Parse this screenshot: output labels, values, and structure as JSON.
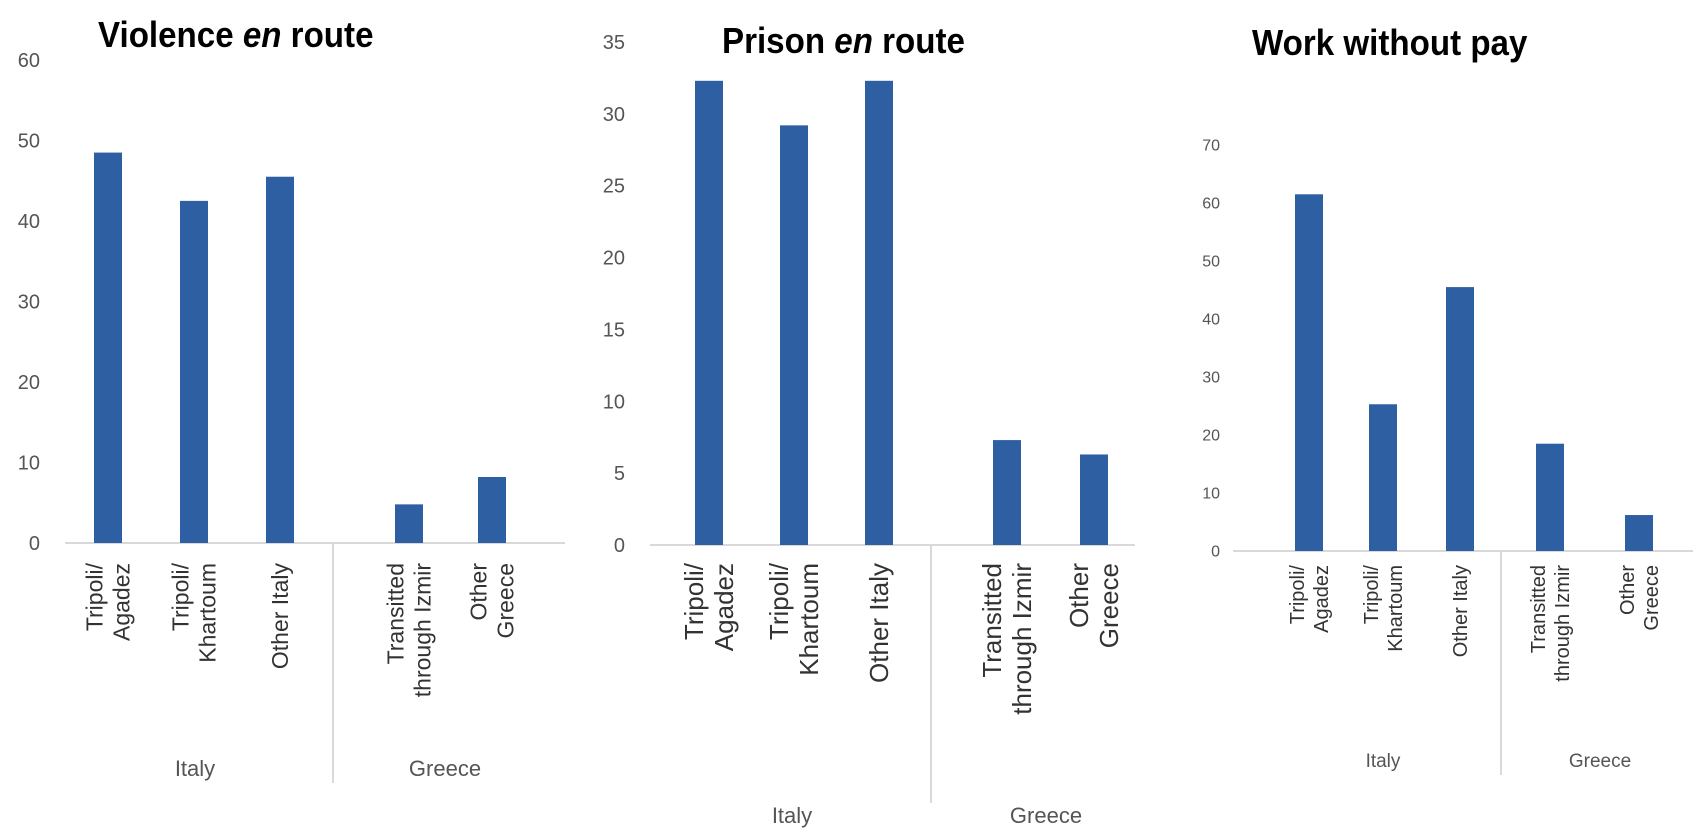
{
  "chart_data": [
    {
      "type": "bar",
      "title_parts": [
        "Violence ",
        "en",
        " route"
      ],
      "categories": [
        {
          "label": [
            "Tripoli/",
            "Agadez"
          ],
          "group": "Italy"
        },
        {
          "label": [
            "Tripoli/",
            "Khartoum"
          ],
          "group": "Italy"
        },
        {
          "label": [
            "Other Italy"
          ],
          "group": "Italy"
        },
        {
          "label": [
            "Transitted",
            "through Izmir"
          ],
          "group": "Greece"
        },
        {
          "label": [
            "Other",
            "Greece"
          ],
          "group": "Greece"
        }
      ],
      "groups": [
        "Italy",
        "Greece"
      ],
      "values": [
        48.5,
        42.5,
        45.5,
        4.8,
        8.2
      ],
      "ylim": [
        0,
        60
      ],
      "yticks": [
        0,
        10,
        20,
        30,
        40,
        50,
        60
      ],
      "color": "#2e5fa3"
    },
    {
      "type": "bar",
      "title_parts": [
        "Prison ",
        "en",
        " route"
      ],
      "categories": [
        {
          "label": [
            "Tripoli/",
            "Agadez"
          ],
          "group": "Italy"
        },
        {
          "label": [
            "Tripoli/",
            "Khartoum"
          ],
          "group": "Italy"
        },
        {
          "label": [
            "Other Italy"
          ],
          "group": "Italy"
        },
        {
          "label": [
            "Transitted",
            "through Izmir"
          ],
          "group": "Greece"
        },
        {
          "label": [
            "Other",
            "Greece"
          ],
          "group": "Greece"
        }
      ],
      "groups": [
        "Italy",
        "Greece"
      ],
      "values": [
        32.3,
        29.2,
        32.3,
        7.3,
        6.3
      ],
      "ylim": [
        0,
        35
      ],
      "yticks": [
        0,
        5,
        10,
        15,
        20,
        25,
        30,
        35
      ],
      "color": "#2e5fa3"
    },
    {
      "type": "bar",
      "title_parts": [
        "Work without pay"
      ],
      "categories": [
        {
          "label": [
            "Tripoli/",
            "Agadez"
          ],
          "group": "Italy"
        },
        {
          "label": [
            "Tripoli/",
            "Khartoum"
          ],
          "group": "Italy"
        },
        {
          "label": [
            "Other Italy"
          ],
          "group": "Italy"
        },
        {
          "label": [
            "Transitted",
            "through Izmir"
          ],
          "group": "Greece"
        },
        {
          "label": [
            "Other",
            "Greece"
          ],
          "group": "Greece"
        }
      ],
      "groups": [
        "Italy",
        "Greece"
      ],
      "values": [
        61.5,
        25.3,
        45.5,
        18.5,
        6.2
      ],
      "ylim": [
        0,
        70
      ],
      "yticks": [
        0,
        10,
        20,
        30,
        40,
        50,
        60,
        70
      ],
      "color": "#2e5fa3"
    }
  ]
}
